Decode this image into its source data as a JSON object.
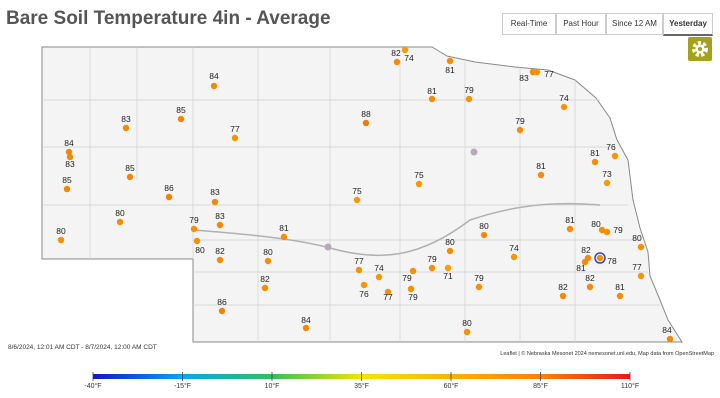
{
  "header": {
    "title": "Bare Soil Temperature 4in - Average",
    "tabs": [
      "Real-Time",
      "Past Hour",
      "Since 12 AM",
      "Yesterday"
    ],
    "active_tab": 3
  },
  "date_range": "8/6/2024, 12:01 AM CDT - 8/7/2024, 12:00 AM CDT",
  "attribution": "Leaflet | © Nebraska Mesonet 2024 nemesonet.unl.edu, Map data from OpenStreetMap",
  "stations": [
    82,
    74,
    84,
    85,
    83,
    77,
    84,
    83,
    85,
    85,
    86,
    83,
    80,
    79,
    83,
    80,
    80,
    82,
    81,
    80,
    82,
    86,
    84,
    88,
    75,
    75,
    81,
    81,
    79,
    83,
    77,
    74,
    79,
    81,
    81,
    76,
    73,
    80,
    74,
    81,
    80,
    79,
    80,
    82,
    81,
    78,
    77,
    82,
    81,
    82,
    79,
    80,
    79,
    71,
    79,
    74,
    77,
    76,
    77,
    79,
    80,
    84
  ],
  "legend": {
    "ticks": [
      {
        "value": -40,
        "label": "-40°F"
      },
      {
        "value": -15,
        "label": "-15°F"
      },
      {
        "value": 10,
        "label": "10°F"
      },
      {
        "value": 35,
        "label": "35°F"
      },
      {
        "value": 60,
        "label": "60°F"
      },
      {
        "value": 85,
        "label": "85°F"
      },
      {
        "value": 110,
        "label": "110°F"
      }
    ],
    "colors": [
      "#1414c8",
      "#00a8f0",
      "#2ec25a",
      "#f2e600",
      "#ffb000",
      "#f78400",
      "#e41a1a"
    ]
  }
}
